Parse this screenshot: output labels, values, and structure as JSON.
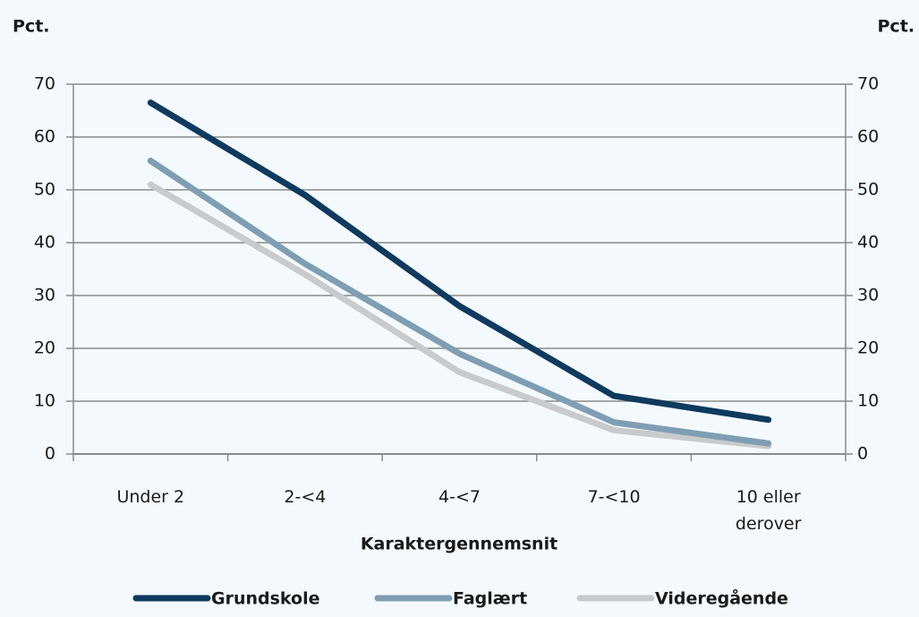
{
  "chart_data": {
    "type": "line",
    "ylabel": "Pct.",
    "y2label": "Pct.",
    "xlabel": "Karaktergennemsnit",
    "categories": [
      "Under 2",
      "2-<4",
      "4-<7",
      "7-<10",
      "10 eller derover"
    ],
    "series": [
      {
        "name": "Grundskole",
        "color": "#0f3a5f",
        "values": [
          66.5,
          49,
          28,
          11,
          6.5
        ]
      },
      {
        "name": "Faglært",
        "color": "#7f9eb3",
        "values": [
          55.5,
          36,
          19,
          6,
          2
        ]
      },
      {
        "name": "Videregående",
        "color": "#c9cacb",
        "values": [
          51,
          34,
          15.5,
          4.5,
          1.5
        ]
      }
    ],
    "ylim": [
      0,
      70
    ],
    "yticks": [
      0,
      10,
      20,
      30,
      40,
      50,
      60,
      70
    ],
    "y2lim": [
      0,
      70
    ],
    "y2ticks": [
      0,
      10,
      20,
      30,
      40,
      50,
      60,
      70
    ],
    "grid": true,
    "legend": "bottom"
  }
}
